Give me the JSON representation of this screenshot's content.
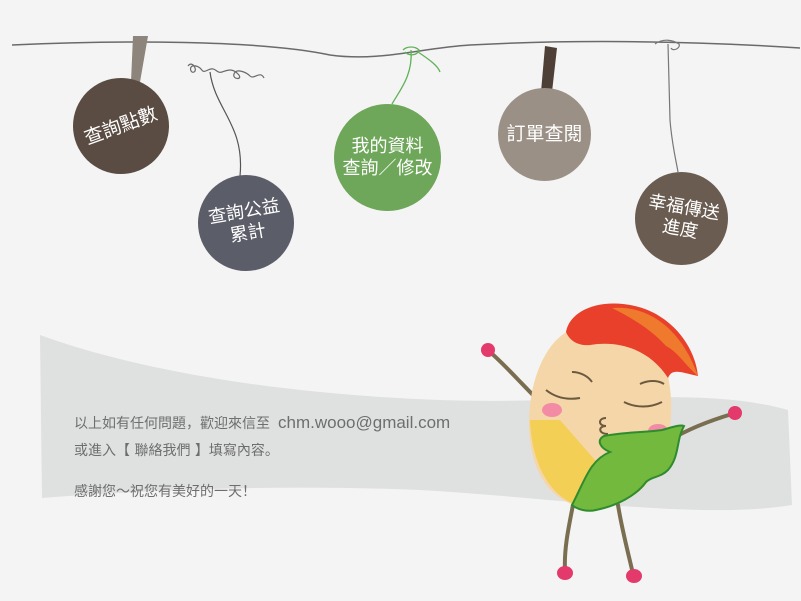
{
  "tags": {
    "points": [
      "查詢點數"
    ],
    "charity": [
      "查詢公益",
      "累計"
    ],
    "profile": [
      "我的資料",
      "查詢／修改"
    ],
    "orders": [
      "訂單查閱"
    ],
    "delivery": [
      "幸福傳送",
      "進度"
    ]
  },
  "message": {
    "line1": "以上如有任何問題，歡迎來信至",
    "email": "chm.wooo@gmail.com",
    "line2": "或進入【 聯絡我們 】填寫內容。",
    "thanks": "感謝您～祝您有美好的一天！"
  },
  "colors": {
    "points": "#5a4c42",
    "charity": "#5b5d68",
    "profile": "#6ea65a",
    "orders": "#9b9086",
    "delivery": "#6a5c51"
  }
}
